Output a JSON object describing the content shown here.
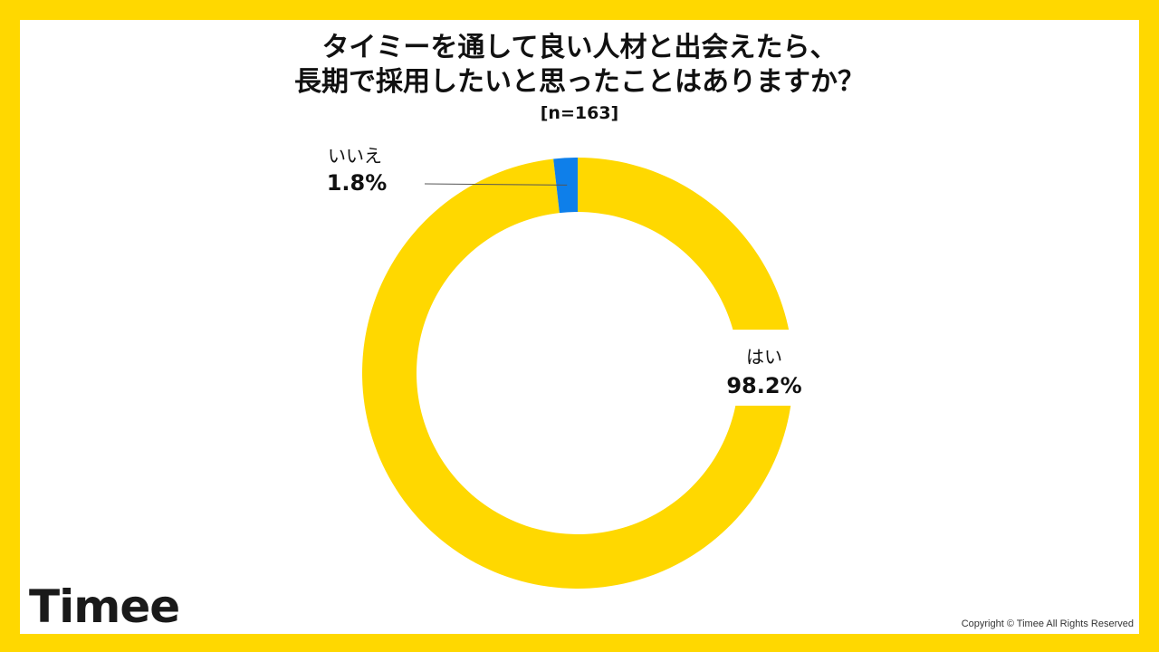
{
  "chart_data": {
    "type": "pie",
    "title": "タイミーを通して良い人材と出会えたら、長期で採用したいと思ったことはありますか？",
    "title_lines": [
      "タイミーを通して良い人材と出会えたら、",
      "長期で採用したいと思ったことはありますか？"
    ],
    "subtitle": "[n=163]",
    "donut": true,
    "slices": [
      {
        "label": "はい",
        "value": 98.2,
        "value_label": "98.2%",
        "color": "#FFD800"
      },
      {
        "label": "いいえ",
        "value": 1.8,
        "value_label": "1.8%",
        "color": "#0E7FEA"
      }
    ]
  },
  "brand": {
    "logo_text": "Timee",
    "copyright": "Copyright © Timee All Rights Reserved",
    "frame_color": "#FFD800"
  }
}
